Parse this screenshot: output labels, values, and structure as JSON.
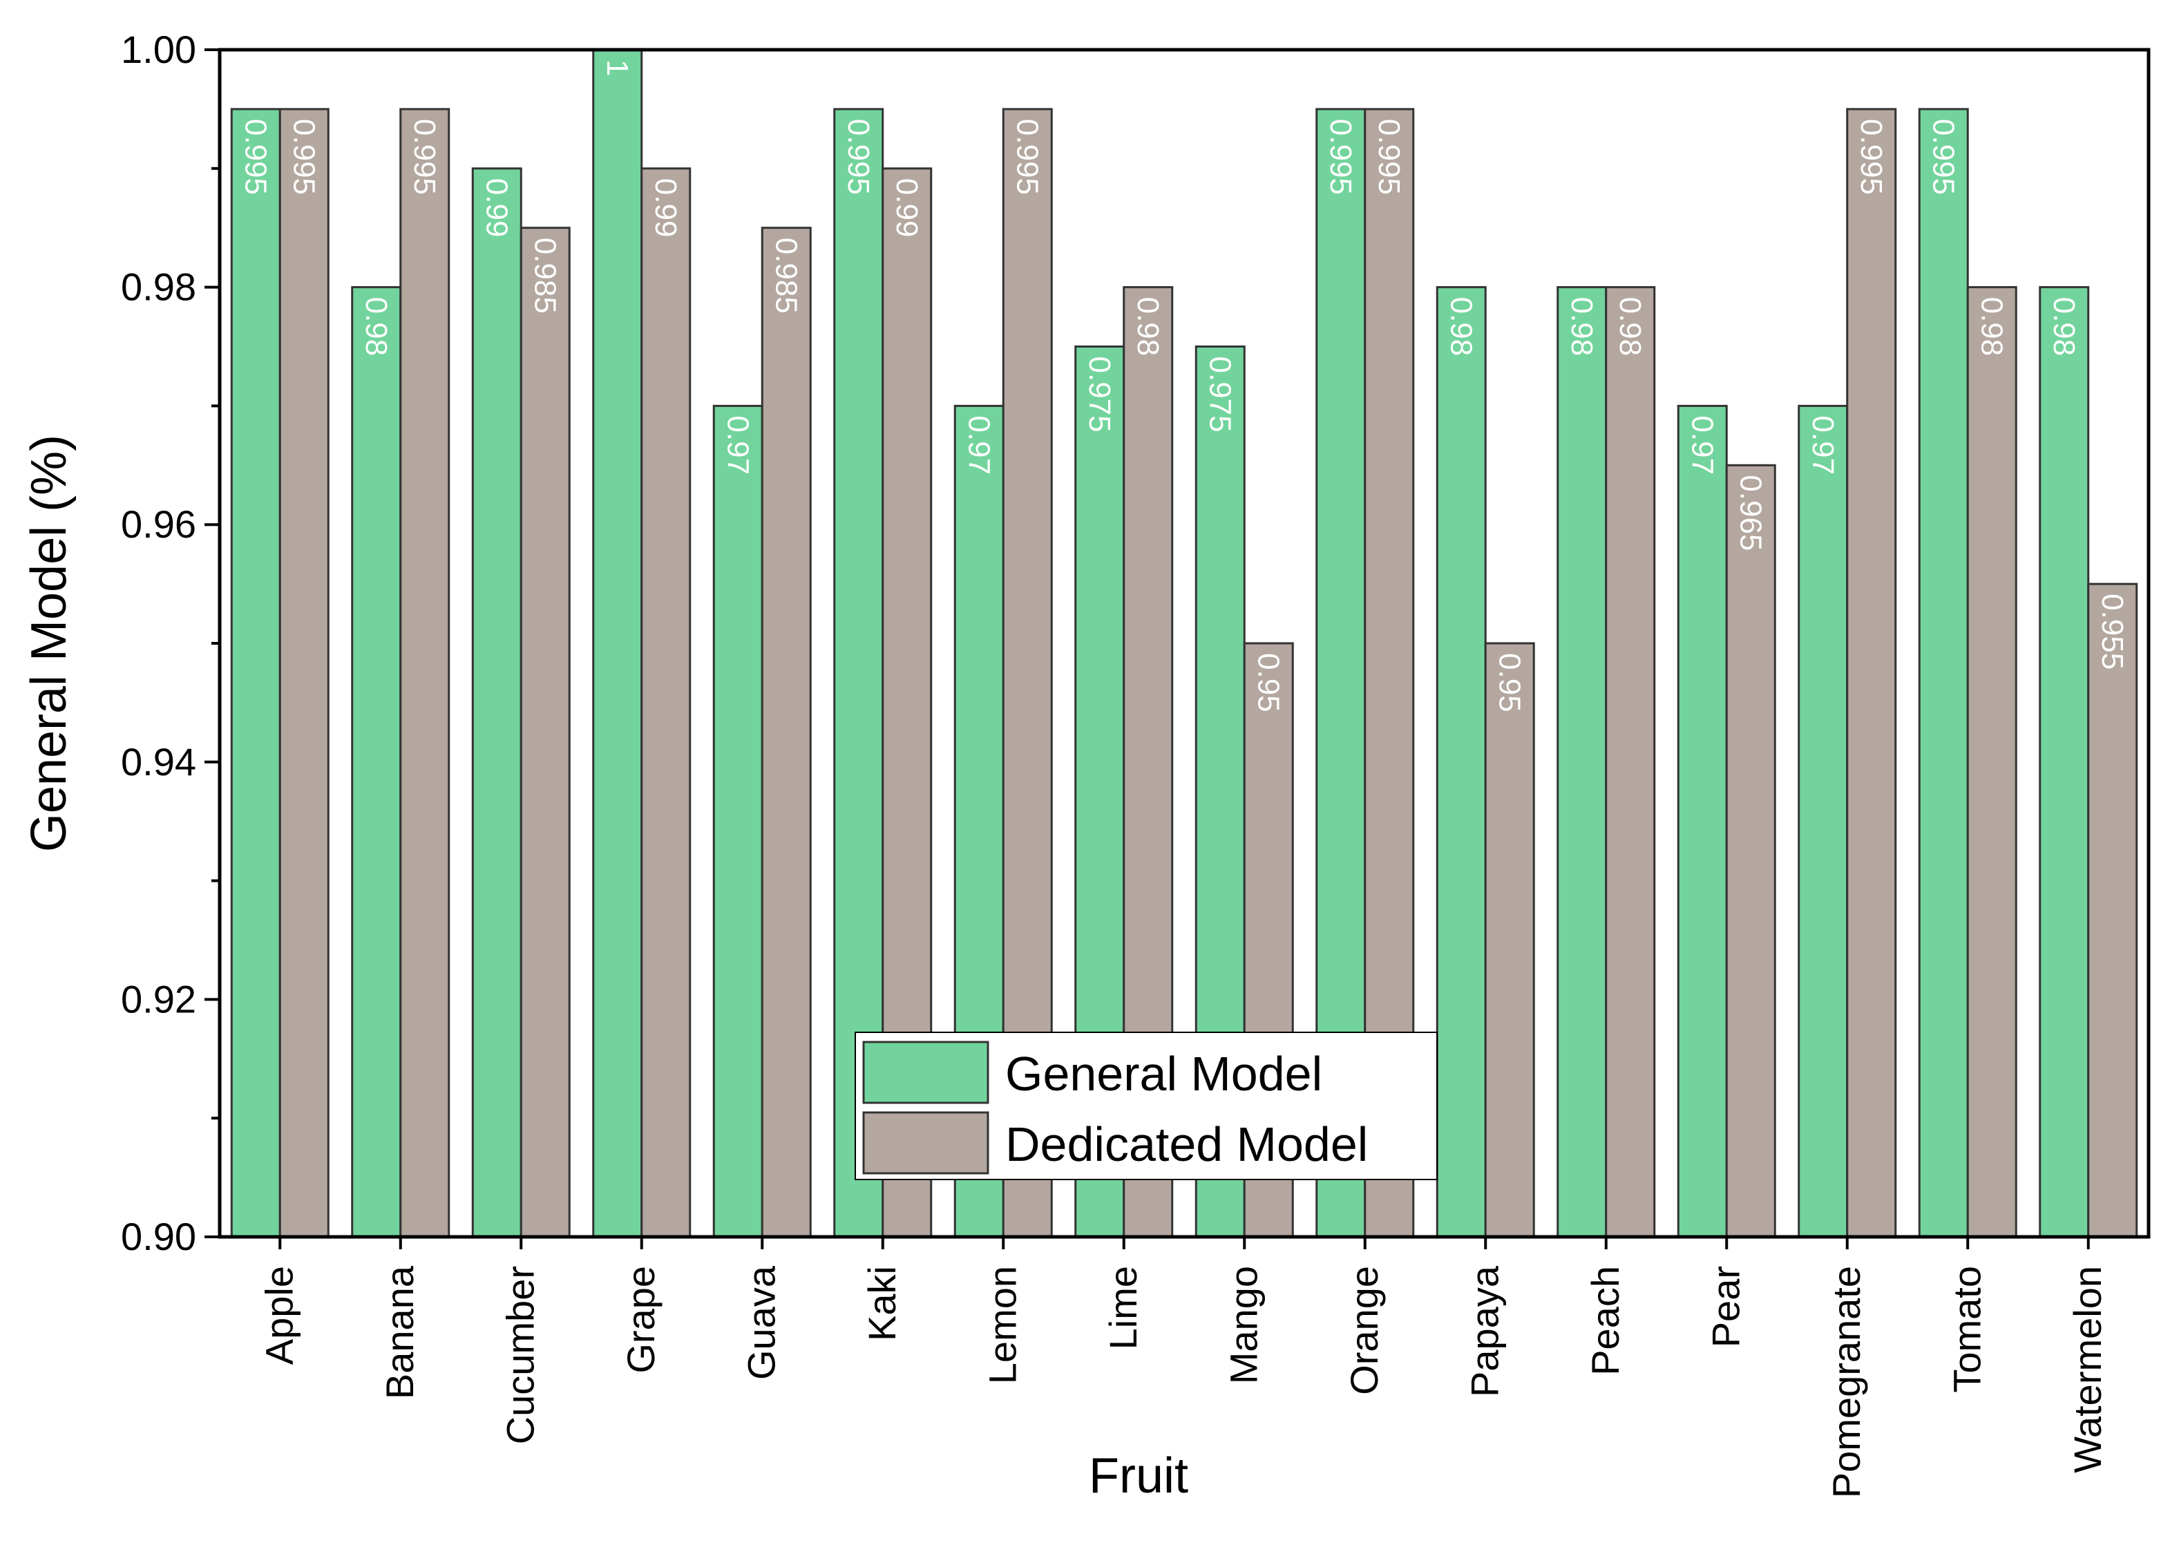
{
  "chart_data": {
    "type": "bar",
    "title": "",
    "xlabel": "Fruit",
    "ylabel": "General Model (%)",
    "ylim": [
      0.9,
      1.0
    ],
    "yticks": [
      "0.90",
      "0.92",
      "0.94",
      "0.96",
      "0.98",
      "1.00"
    ],
    "ytick_values": [
      0.9,
      0.92,
      0.94,
      0.96,
      0.98,
      1.0
    ],
    "categories": [
      "Apple",
      "Banana",
      "Cucumber",
      "Grape",
      "Guava",
      "Kaki",
      "Lemon",
      "Lime",
      "Mango",
      "Orange",
      "Papaya",
      "Peach",
      "Pear",
      "Pomegranate",
      "Tomato",
      "Watermelon"
    ],
    "series": [
      {
        "name": "General Model",
        "color": "#72d49c",
        "values": [
          0.995,
          0.98,
          0.99,
          1,
          0.97,
          0.995,
          0.97,
          0.975,
          0.975,
          0.995,
          0.98,
          0.98,
          0.97,
          0.97,
          0.995,
          0.98
        ],
        "labels": [
          "0.995",
          "0.98",
          "0.99",
          "1",
          "0.97",
          "0.995",
          "0.97",
          "0.975",
          "0.975",
          "0.995",
          "0.98",
          "0.98",
          "0.97",
          "0.97",
          "0.995",
          "0.98"
        ]
      },
      {
        "name": "Dedicated Model",
        "color": "#b3a79f",
        "values": [
          0.995,
          0.995,
          0.985,
          0.99,
          0.985,
          0.99,
          0.995,
          0.98,
          0.95,
          0.995,
          0.95,
          0.98,
          0.965,
          0.995,
          0.98,
          0.955
        ],
        "labels": [
          "0.995",
          "0.995",
          "0.985",
          "0.99",
          "0.985",
          "0.99",
          "0.995",
          "0.98",
          "0.95",
          "0.995",
          "0.95",
          "0.98",
          "0.965",
          "0.995",
          "0.98",
          "0.955"
        ]
      }
    ],
    "legend_position": "bottom-center",
    "grid": false
  }
}
